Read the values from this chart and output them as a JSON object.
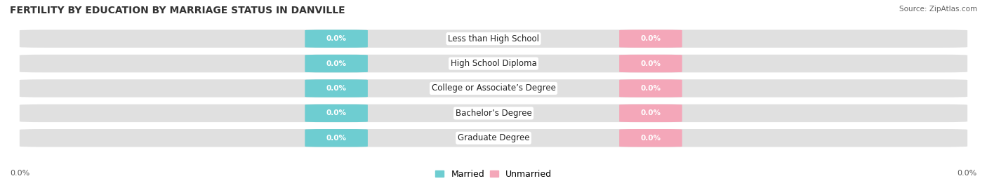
{
  "title": "FERTILITY BY EDUCATION BY MARRIAGE STATUS IN DANVILLE",
  "source": "Source: ZipAtlas.com",
  "categories": [
    "Less than High School",
    "High School Diploma",
    "College or Associate’s Degree",
    "Bachelor’s Degree",
    "Graduate Degree"
  ],
  "married_values": [
    0.0,
    0.0,
    0.0,
    0.0,
    0.0
  ],
  "unmarried_values": [
    0.0,
    0.0,
    0.0,
    0.0,
    0.0
  ],
  "married_color": "#6ECDD1",
  "unmarried_color": "#F4A7B9",
  "bar_bg_color": "#E0E0E0",
  "bar_bg_color2": "#EAEAEA",
  "title_fontsize": 10,
  "label_fontsize": 8.5,
  "axis_label_fontsize": 8,
  "legend_fontsize": 9,
  "background_color": "#FFFFFF",
  "value_label_fontsize": 7.5
}
